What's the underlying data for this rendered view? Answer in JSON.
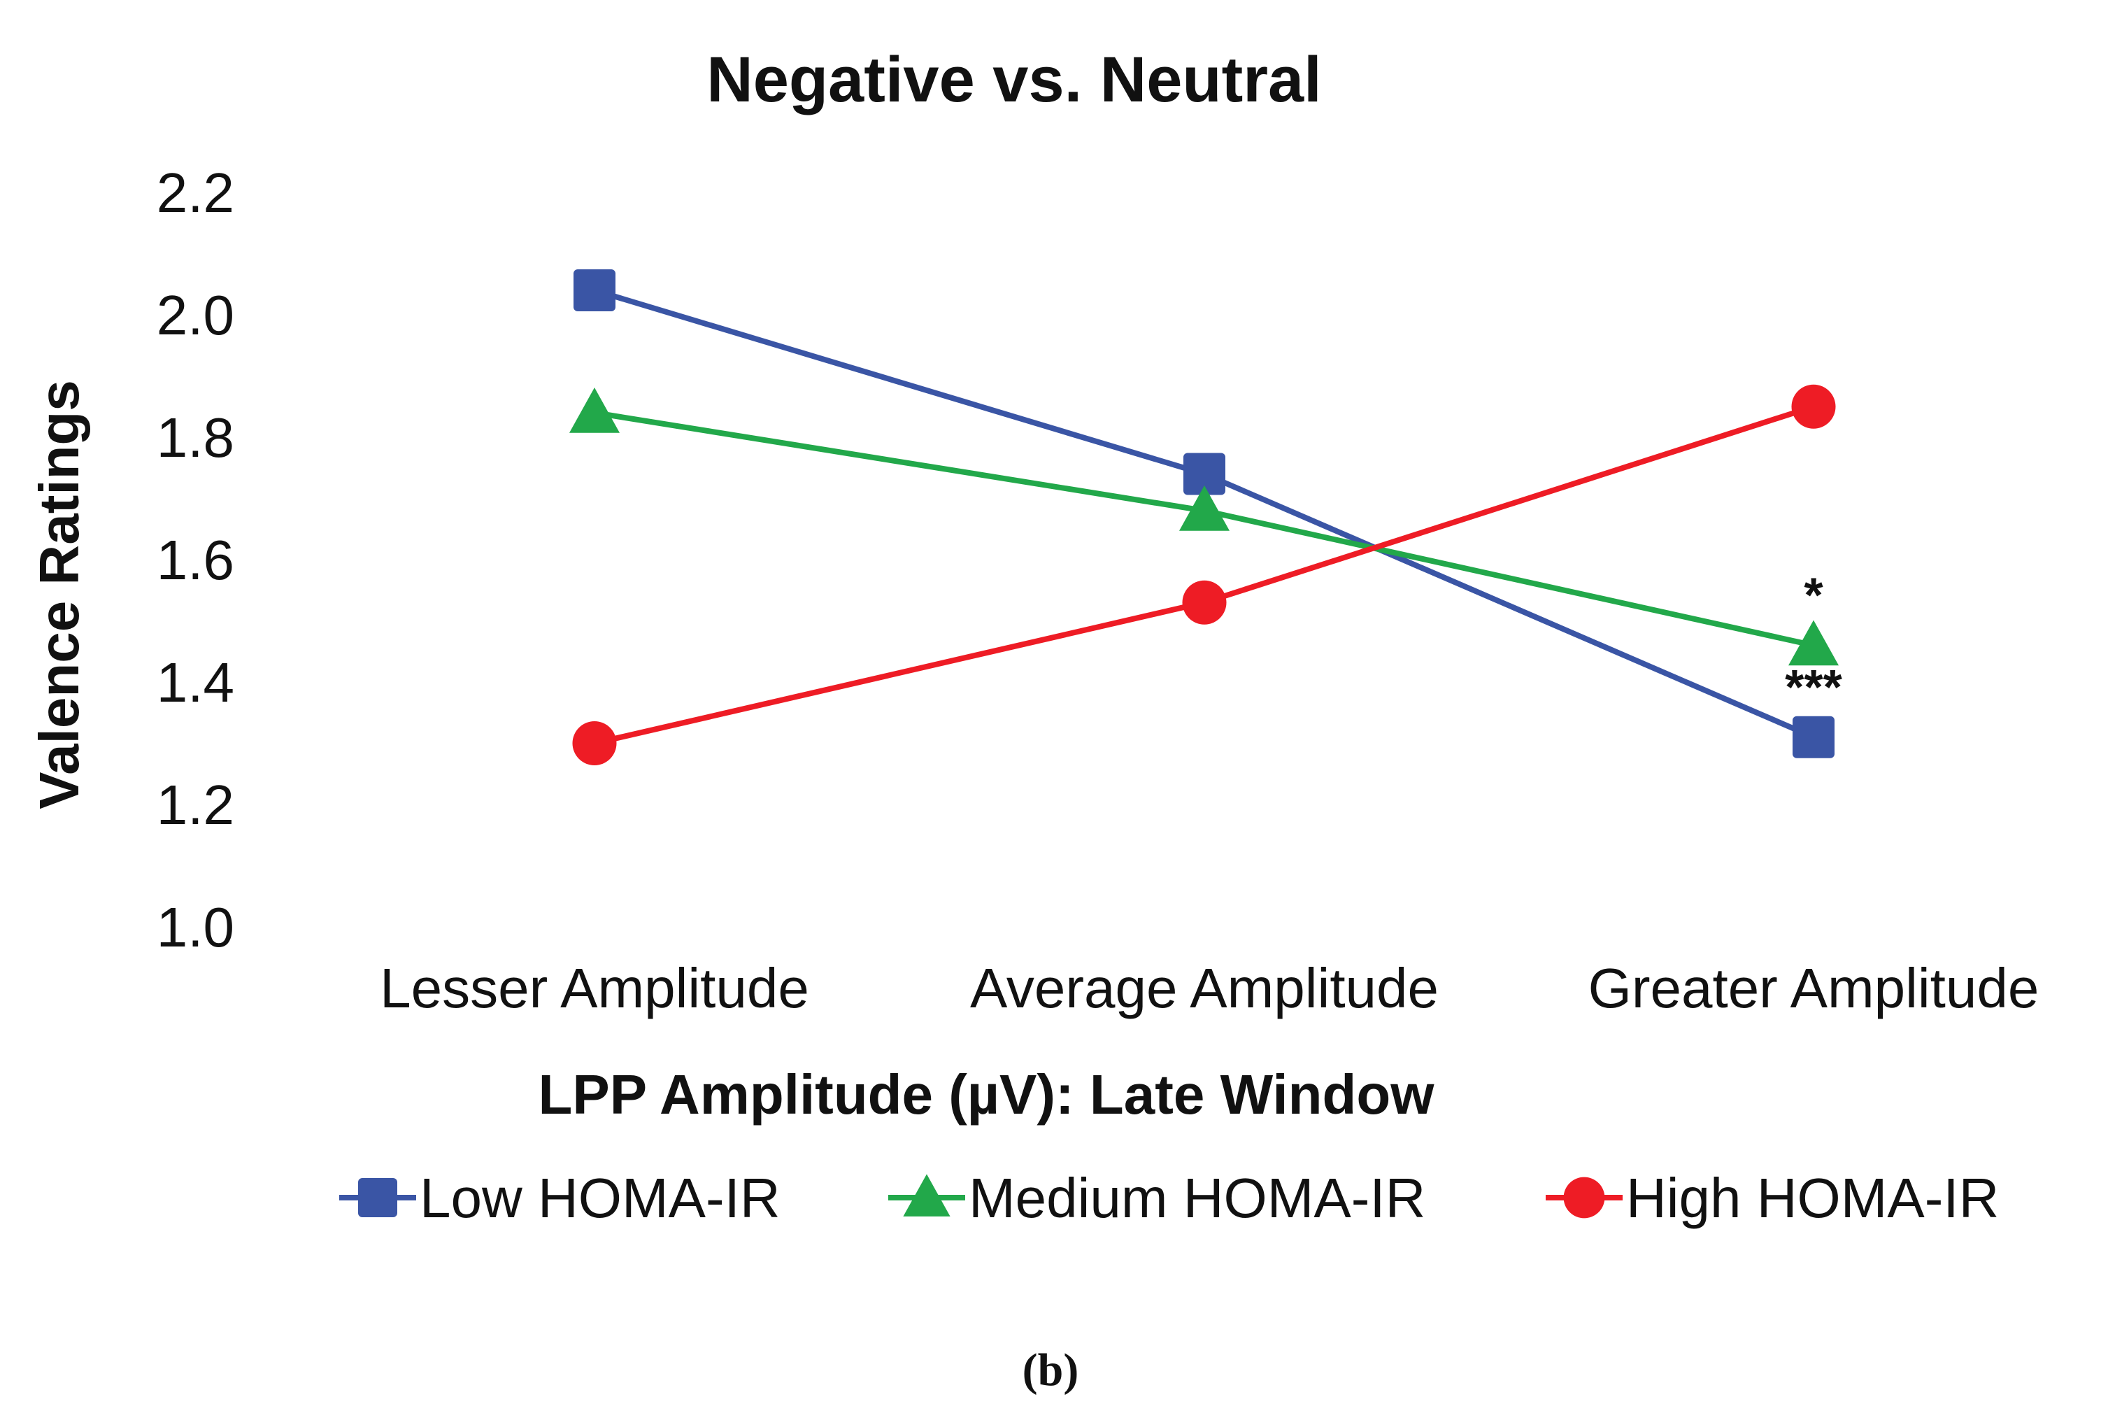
{
  "chart_data": {
    "type": "line",
    "title": "Negative vs. Neutral",
    "xlabel": "LPP Amplitude (µV): Late Window",
    "ylabel": "Valence Ratings",
    "categories": [
      "Lesser Amplitude",
      "Average Amplitude",
      "Greater Amplitude"
    ],
    "ylim": [
      1.0,
      2.2
    ],
    "yticks": [
      "1.0",
      "1.2",
      "1.4",
      "1.6",
      "1.8",
      "2.0",
      "2.2"
    ],
    "grid": false,
    "legend_position": "bottom",
    "series": [
      {
        "name": "Low HOMA-IR",
        "color": "#3a55a5",
        "marker": "square",
        "values": [
          2.04,
          1.74,
          1.31
        ]
      },
      {
        "name": "Medium HOMA-IR",
        "color": "#22a84a",
        "marker": "triangle",
        "values": [
          1.84,
          1.68,
          1.46
        ]
      },
      {
        "name": "High HOMA-IR",
        "color": "#ee1c25",
        "marker": "circle",
        "values": [
          1.3,
          1.53,
          1.85
        ]
      }
    ],
    "annotations": [
      {
        "text": "*",
        "series": "Medium HOMA-IR",
        "category": "Greater Amplitude"
      },
      {
        "text": "***",
        "series": "Low HOMA-IR",
        "category": "Greater Amplitude"
      }
    ]
  },
  "caption": "(b)"
}
